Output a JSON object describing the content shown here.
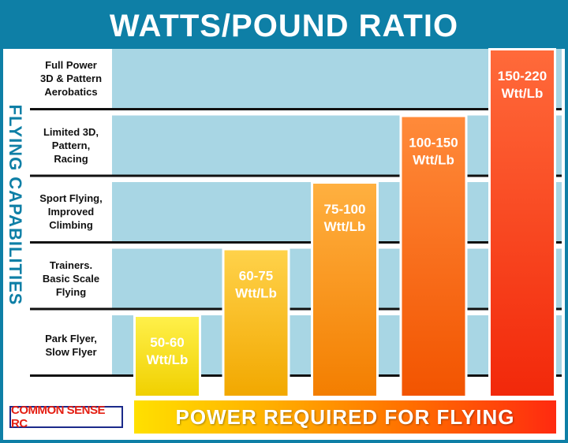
{
  "header": {
    "title": "WATTS/POUND RATIO"
  },
  "side_label": "FLYING CAPABILITIES",
  "rows": [
    {
      "lines": [
        "Full Power",
        "3D & Pattern",
        "Aerobatics"
      ]
    },
    {
      "lines": [
        "Limited 3D,",
        "Pattern,",
        "Racing"
      ]
    },
    {
      "lines": [
        "Sport Flying,",
        "Improved",
        "Climbing"
      ]
    },
    {
      "lines": [
        "Trainers.",
        "Basic Scale",
        "Flying"
      ]
    },
    {
      "lines": [
        "Park Flyer,",
        "Slow Flyer"
      ]
    }
  ],
  "footer": {
    "brand": "COMMON SENSE RC",
    "power_label": "POWER REQUIRED FOR FLYING"
  },
  "colors": {
    "brand_blue": "#0e7fa6",
    "band_fill": "#a8d6e4",
    "bar_start": "#ffe000",
    "bar_end": "#ff2a10"
  },
  "chart_data": {
    "type": "bar",
    "title": "WATTS/POUND RATIO",
    "xlabel": "POWER REQUIRED FOR FLYING",
    "ylabel": "FLYING CAPABILITIES",
    "categories": [
      "Park Flyer, Slow Flyer",
      "Trainers. Basic Scale Flying",
      "Sport Flying, Improved Climbing",
      "Limited 3D, Pattern, Racing",
      "Full Power 3D & Pattern Aerobatics"
    ],
    "values": [
      1,
      2,
      3,
      4,
      5
    ],
    "bar_labels": [
      {
        "range": "50-60",
        "unit": "Wtt/Lb"
      },
      {
        "range": "60-75",
        "unit": "Wtt/Lb"
      },
      {
        "range": "75-100",
        "unit": "Wtt/Lb"
      },
      {
        "range": "100-150",
        "unit": "Wtt/Lb"
      },
      {
        "range": "150-220",
        "unit": "Wtt/Lb"
      }
    ],
    "ylim": [
      0,
      5
    ],
    "grid": true,
    "colors": [
      "#f4e412",
      "#f7b70c",
      "#f68f08",
      "#f56406",
      "#f43a0c"
    ]
  }
}
